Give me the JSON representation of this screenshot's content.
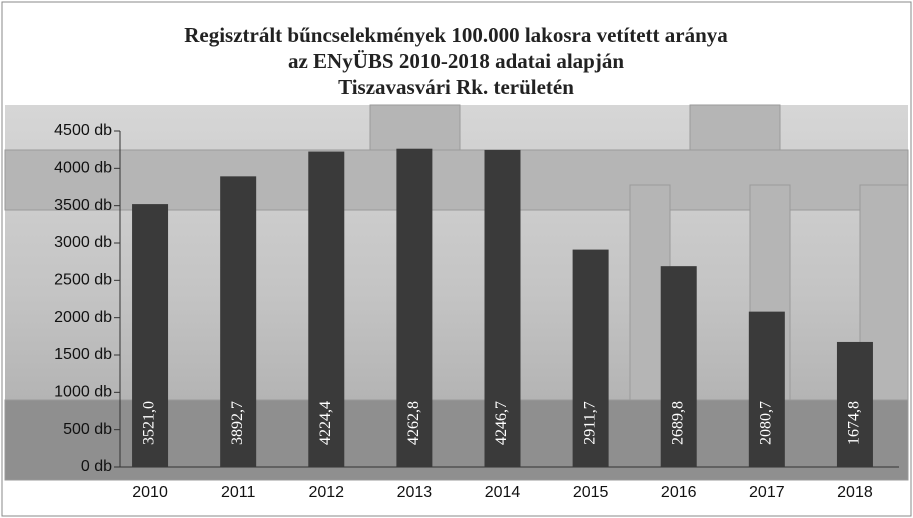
{
  "chart_data": {
    "type": "bar",
    "title": [
      "Regisztrált bűncselekmények 100.000 lakosra vetített aránya",
      "az ENyÜBS  2010-2018 adatai alapján",
      "Tiszavasvári Rk. területén"
    ],
    "categories": [
      "2010",
      "2011",
      "2012",
      "2013",
      "2014",
      "2015",
      "2016",
      "2017",
      "2018"
    ],
    "values": [
      3521.0,
      3892.7,
      4224.4,
      4262.8,
      4246.7,
      2911.7,
      2689.8,
      2080.7,
      1674.8
    ],
    "value_labels": [
      "3521,0",
      "3892,7",
      "4224,4",
      "4262,8",
      "4246,7",
      "2911,7",
      "2689,8",
      "2080,7",
      "1674,8"
    ],
    "color": "#3a3a3a",
    "ylim": [
      0,
      4500
    ],
    "yticks": [
      {
        "value": 0,
        "label": "0 db"
      },
      {
        "value": 500,
        "label": "500 db"
      },
      {
        "value": 1000,
        "label": "1000 db"
      },
      {
        "value": 1500,
        "label": "1500 db"
      },
      {
        "value": 2000,
        "label": "2000 db"
      },
      {
        "value": 2500,
        "label": "2500 db"
      },
      {
        "value": 3000,
        "label": "3000 db"
      },
      {
        "value": 3500,
        "label": "3500 db"
      },
      {
        "value": 4000,
        "label": "4000 db"
      },
      {
        "value": 4500,
        "label": "4500 db"
      }
    ]
  }
}
